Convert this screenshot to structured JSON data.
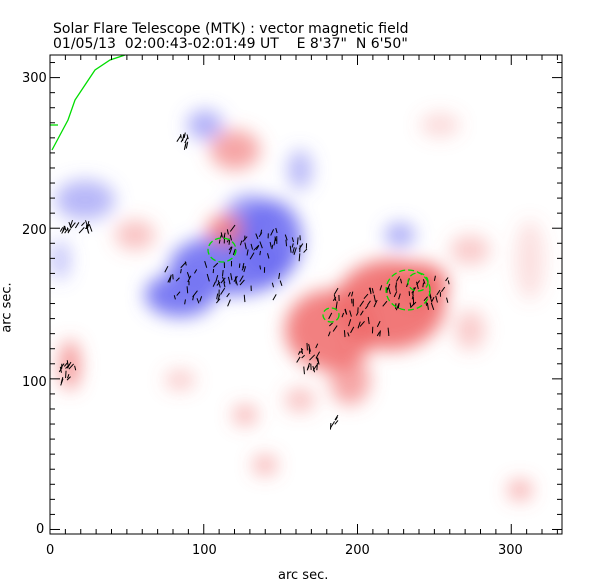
{
  "chart_data": {
    "type": "heatmap",
    "title": "Solar Flare Telescope (MTK) : vector magnetic field",
    "subtitle": "01/05/13  02:00:43-02:01:49 UT    E 8'37\"  N 6'50\"",
    "xlabel": "arc sec.",
    "ylabel": "arc sec.",
    "xlim": [
      0,
      333
    ],
    "ylim": [
      -3,
      315
    ],
    "x_ticks": [
      "0",
      "100",
      "200",
      "300"
    ],
    "y_ticks": [
      "0",
      "100",
      "200",
      "300"
    ],
    "colors": {
      "positive": "#ff5050",
      "negative": "#5050ff",
      "vectors": "#000000",
      "contour": "#00dd00"
    }
  }
}
